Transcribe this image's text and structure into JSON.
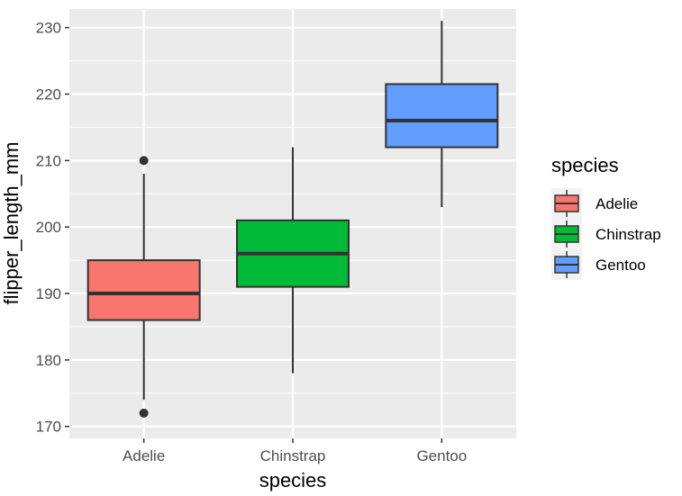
{
  "chart_data": {
    "type": "boxplot",
    "title": "",
    "xlabel": "species",
    "ylabel": "flipper_length_mm",
    "ylim": [
      168.2,
      232.8
    ],
    "yticks": [
      170,
      180,
      190,
      200,
      210,
      220,
      230
    ],
    "ytick_labels": [
      "170",
      "180",
      "190",
      "200",
      "210",
      "220",
      "230"
    ],
    "grid": true,
    "categories": [
      "Adelie",
      "Chinstrap",
      "Gentoo"
    ],
    "boxes": [
      {
        "category": "Adelie",
        "q1": 186,
        "median": 190,
        "q3": 195,
        "whisker_low": 174,
        "whisker_high": 208,
        "outliers": [
          172,
          210
        ],
        "color": "#F8766D"
      },
      {
        "category": "Chinstrap",
        "q1": 191,
        "median": 196,
        "q3": 201,
        "whisker_low": 178,
        "whisker_high": 212,
        "outliers": [],
        "color": "#00BA38"
      },
      {
        "category": "Gentoo",
        "q1": 212,
        "median": 216,
        "q3": 221.5,
        "whisker_low": 203,
        "whisker_high": 231,
        "outliers": [],
        "color": "#619CFF"
      }
    ],
    "legend": {
      "title": "species",
      "placement": "right",
      "entries": [
        {
          "label": "Adelie",
          "color": "#F8766D"
        },
        {
          "label": "Chinstrap",
          "color": "#00BA38"
        },
        {
          "label": "Gentoo",
          "color": "#619CFF"
        }
      ]
    },
    "colors": {
      "panel": "#EBEBEB",
      "grid": "#FFFFFF",
      "box_line": "#333333"
    }
  }
}
